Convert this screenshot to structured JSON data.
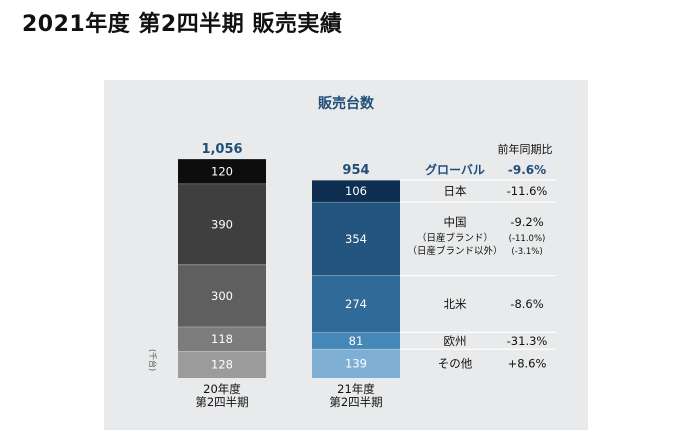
{
  "page_title": "2021年度 第2四半期 販売実績",
  "chart_data": {
    "type": "bar",
    "stacked": true,
    "title": "販売台数",
    "unit": "(千台)",
    "categories": [
      "20年度\n第2四半期",
      "21年度\n第2四半期"
    ],
    "category_lines": [
      [
        "20年度",
        "第2四半期"
      ],
      [
        "21年度",
        "第2四半期"
      ]
    ],
    "totals": [
      "1,056",
      "954"
    ],
    "segment_order_bottom_to_top": [
      "その他",
      "欧州",
      "北米",
      "中国",
      "日本"
    ],
    "series": [
      {
        "name": "日本",
        "values": [
          120,
          106
        ],
        "labels": [
          "120",
          "106"
        ]
      },
      {
        "name": "中国",
        "values": [
          390,
          354
        ],
        "labels": [
          "390",
          "354"
        ]
      },
      {
        "name": "北米",
        "values": [
          300,
          274
        ],
        "labels": [
          "300",
          "274"
        ]
      },
      {
        "name": "欧州",
        "values": [
          118,
          81
        ],
        "labels": [
          "118",
          "81"
        ]
      },
      {
        "name": "その他",
        "values": [
          128,
          139
        ],
        "labels": [
          "128",
          "139"
        ]
      }
    ],
    "colors": {
      "fy20": [
        "#0d0d0d",
        "#3f3f3f",
        "#5f5f5f",
        "#7c7c7c",
        "#9b9b9b"
      ],
      "fy21": [
        "#0e2f52",
        "#23557f",
        "#2f6a98",
        "#4587b7",
        "#7fb0d4"
      ]
    },
    "yoy_header": "前年同期比",
    "yoy": {
      "global": {
        "label": "グローバル",
        "value": "-9.6%"
      },
      "rows": [
        {
          "label": "日本",
          "value": "-11.6%"
        },
        {
          "label": "中国",
          "value": "-9.2%",
          "sub": [
            {
              "label": "（日産ブランド）",
              "value": "(-11.0%)"
            },
            {
              "label": "（日産ブランド以外）",
              "value": "(-3.1%)"
            }
          ]
        },
        {
          "label": "北米",
          "value": "-8.6%"
        },
        {
          "label": "欧州",
          "value": "-31.3%"
        },
        {
          "label": "その他",
          "value": "+8.6%"
        }
      ]
    }
  }
}
